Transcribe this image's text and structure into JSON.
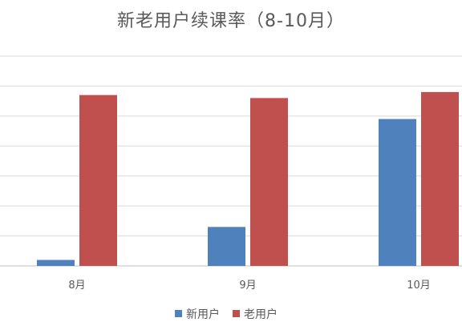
{
  "chart_data": {
    "type": "bar",
    "title": "新老用户续课率（8-10月）",
    "categories": [
      "8月",
      "9月",
      "10月"
    ],
    "series": [
      {
        "name": "新用户",
        "values": [
          2,
          13,
          49
        ],
        "color": "#4F81BD"
      },
      {
        "name": "老用户",
        "values": [
          57,
          56,
          58
        ],
        "color": "#C0504D"
      }
    ],
    "ylim": [
      0,
      70
    ],
    "grid": true,
    "legend": "bottom"
  }
}
